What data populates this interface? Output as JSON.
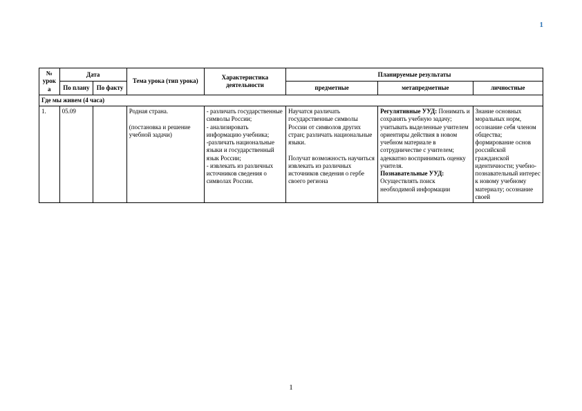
{
  "pageNumberTop": "1",
  "pageNumberBottom": "1",
  "headers": {
    "num": "№ урока",
    "date": "Дата",
    "datePlan": "По плану",
    "dateFact": "По факту",
    "topic": "Тема урока (тип урока)",
    "charact": "Характеристика деятельности",
    "results": "Планируемые результаты",
    "resPred": "предметные",
    "resMeta": "метапредметные",
    "resLich": "личностные"
  },
  "section": "Где мы живем (4 часа)",
  "row": {
    "num": "1.",
    "datePlan": "05.09",
    "dateFact": "",
    "topic": "Родная страна.\n\n(постановка и решение учебной задачи)",
    "charact": "- различать государственные символы России;\n- анализировать информацию учебника;\n-различать национальные языки и государственный язык России;\n- извлекать из различных источников сведения о символах России.",
    "pred": "Научатся различать государственные  символы России от символов других стран; различать национальные языки.\n\nПолучат возможность научиться извлекать из различных источников сведения о гербе своего региона",
    "metaLabel1": "Регулятивные УУД:",
    "metaText1": "Понимать и сохранять учебную задачу; учитывать выделенные учителем ориентиры действия в новом учебном материале в сотрудничестве с учителем; адекватно воспринимать оценку учителя.",
    "metaLabel2": "Познавательные УУД:",
    "metaText2": "Осуществлять поиск необходимой информации",
    "lich": "Знание основных моральных норм, осознание себя членом общества; формирование основ российской гражданской идентичности; учебно-познавательный интерес к новому учебному материалу; осознание своей"
  }
}
